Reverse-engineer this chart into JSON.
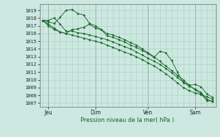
{
  "xlabel": "Pression niveau de la mer( hPa )",
  "bg_color": "#cce8e0",
  "grid_color": "#aaccC4",
  "line_color": "#1a6b2a",
  "ylim": [
    1006.5,
    1019.8
  ],
  "xlim": [
    -0.5,
    29.5
  ],
  "yticks": [
    1007,
    1008,
    1009,
    1010,
    1011,
    1012,
    1013,
    1014,
    1015,
    1016,
    1017,
    1018,
    1019
  ],
  "day_labels": [
    "Jeu",
    "Dim",
    "Ven",
    "Sam"
  ],
  "day_positions": [
    1,
    9,
    18,
    26
  ],
  "series": [
    [
      1017.7,
      1017.7,
      1018.0,
      1017.2,
      1016.3,
      1016.3,
      1016.1,
      1016.0,
      1015.8,
      1015.6,
      1015.4,
      1015.2,
      1014.9,
      1014.6,
      1014.3,
      1014.0,
      1013.6,
      1013.2,
      1012.8,
      1012.4,
      1012.0,
      1011.5,
      1010.9,
      1010.3,
      1009.7,
      1009.2,
      1008.8,
      1008.4,
      1007.5,
      1007.2
    ],
    [
      1017.7,
      1017.2,
      1016.7,
      1016.2,
      1016.0,
      1015.8,
      1015.6,
      1015.4,
      1015.2,
      1015.0,
      1014.8,
      1014.5,
      1014.2,
      1013.9,
      1013.6,
      1013.3,
      1013.0,
      1012.6,
      1012.2,
      1011.8,
      1011.3,
      1010.8,
      1010.2,
      1009.6,
      1009.0,
      1008.6,
      1008.3,
      1008.1,
      1007.8,
      1007.5
    ],
    [
      1017.7,
      1017.5,
      1017.3,
      1018.1,
      1019.0,
      1019.1,
      1018.6,
      1018.4,
      1017.3,
      1017.0,
      1016.5,
      1016.0,
      1015.8,
      1015.5,
      1015.2,
      1014.8,
      1014.5,
      1014.0,
      1013.5,
      1013.0,
      1012.4,
      1011.8,
      1011.2,
      1010.6,
      1010.0,
      1009.3,
      1008.7,
      1008.2,
      1007.3,
      1007.2
    ],
    [
      1017.7,
      1017.0,
      1016.5,
      1016.2,
      1016.0,
      1016.5,
      1016.6,
      1016.8,
      1017.2,
      1016.7,
      1016.5,
      1015.7,
      1015.5,
      1015.2,
      1014.9,
      1014.5,
      1014.2,
      1013.8,
      1013.4,
      1012.9,
      1013.7,
      1013.5,
      1012.5,
      1011.0,
      1009.6,
      1009.3,
      1009.4,
      1009.1,
      1008.2,
      1007.7
    ]
  ]
}
